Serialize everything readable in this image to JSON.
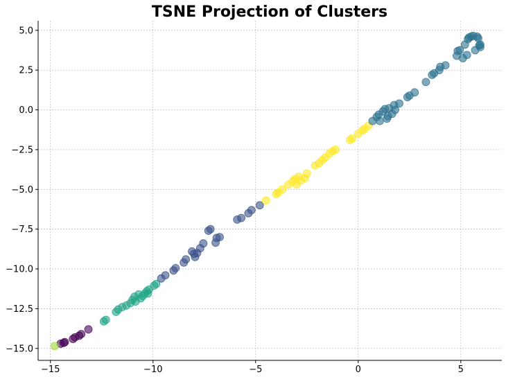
{
  "chart_data": {
    "type": "scatter",
    "title": "TSNE Projection of Clusters",
    "xlabel": "",
    "ylabel": "",
    "xlim": [
      -15.6,
      7.0
    ],
    "ylim": [
      -15.75,
      5.6
    ],
    "x_ticks": [
      -15,
      -10,
      -5,
      0,
      5
    ],
    "y_ticks": [
      5.0,
      2.5,
      0.0,
      -2.5,
      -5.0,
      -7.5,
      -10.0,
      -12.5,
      -15.0
    ],
    "x_tick_labels": [
      "−15",
      "−10",
      "−5",
      "0",
      "5"
    ],
    "y_tick_labels": [
      "5.0",
      "2.5",
      "0.0",
      "−2.5",
      "−5.0",
      "−7.5",
      "−10.0",
      "−12.5",
      "−15.0"
    ],
    "grid": true,
    "legend": "none",
    "series": [
      {
        "color": "#440154",
        "points": [
          [
            -14.5,
            -14.7
          ],
          [
            -14.3,
            -14.6
          ],
          [
            -14.35,
            -14.65
          ],
          [
            -13.9,
            -14.4
          ],
          [
            -13.8,
            -14.3
          ],
          [
            -13.6,
            -14.2
          ],
          [
            -13.5,
            -14.1
          ],
          [
            -13.15,
            -13.8
          ]
        ]
      },
      {
        "color": "#a0da39",
        "points": [
          [
            -14.8,
            -14.85
          ]
        ]
      },
      {
        "color": "#21a585",
        "points": [
          [
            -12.4,
            -13.3
          ],
          [
            -12.3,
            -13.2
          ],
          [
            -11.8,
            -12.7
          ],
          [
            -11.7,
            -12.55
          ],
          [
            -11.5,
            -12.4
          ],
          [
            -11.3,
            -12.3
          ],
          [
            -11.1,
            -12.15
          ],
          [
            -11.0,
            -11.95
          ],
          [
            -10.9,
            -11.75
          ],
          [
            -10.85,
            -12.05
          ],
          [
            -10.7,
            -11.6
          ],
          [
            -10.6,
            -11.85
          ],
          [
            -10.5,
            -11.7
          ],
          [
            -10.4,
            -11.55
          ],
          [
            -10.3,
            -11.4
          ],
          [
            -10.2,
            -11.3
          ],
          [
            -10.25,
            -11.55
          ],
          [
            -9.95,
            -11.05
          ],
          [
            -9.85,
            -10.95
          ]
        ]
      },
      {
        "color": "#3b528b",
        "points": [
          [
            -9.6,
            -10.6
          ],
          [
            -9.4,
            -10.4
          ],
          [
            -9.0,
            -10.1
          ],
          [
            -8.9,
            -9.95
          ],
          [
            -8.5,
            -9.6
          ],
          [
            -8.4,
            -9.4
          ],
          [
            -8.1,
            -8.9
          ],
          [
            -7.95,
            -9.25
          ],
          [
            -8.0,
            -9.05
          ],
          [
            -7.85,
            -9.0
          ],
          [
            -7.7,
            -8.7
          ],
          [
            -7.55,
            -8.4
          ],
          [
            -7.3,
            -7.6
          ],
          [
            -7.2,
            -7.5
          ],
          [
            -6.95,
            -8.35
          ],
          [
            -6.9,
            -8.05
          ],
          [
            -6.75,
            -8.0
          ],
          [
            -5.9,
            -6.9
          ],
          [
            -5.7,
            -6.8
          ],
          [
            -5.35,
            -6.5
          ],
          [
            -5.2,
            -6.3
          ],
          [
            -4.8,
            -6.0
          ]
        ]
      },
      {
        "color": "#fde725",
        "points": [
          [
            -4.5,
            -5.7
          ],
          [
            -4.0,
            -5.3
          ],
          [
            -3.9,
            -5.2
          ],
          [
            -3.7,
            -5.0
          ],
          [
            -3.4,
            -4.7
          ],
          [
            -3.2,
            -4.5
          ],
          [
            -3.1,
            -4.35
          ],
          [
            -3.0,
            -4.7
          ],
          [
            -2.9,
            -4.2
          ],
          [
            -2.8,
            -4.45
          ],
          [
            -2.6,
            -4.3
          ],
          [
            -2.5,
            -4.0
          ],
          [
            -2.1,
            -3.5
          ],
          [
            -1.9,
            -3.35
          ],
          [
            -1.75,
            -3.15
          ],
          [
            -1.6,
            -3.0
          ],
          [
            -1.4,
            -2.75
          ],
          [
            -1.25,
            -2.6
          ],
          [
            -1.1,
            -2.5
          ],
          [
            -0.4,
            -1.9
          ],
          [
            -0.3,
            -1.8
          ],
          [
            0.0,
            -1.5
          ],
          [
            0.2,
            -1.3
          ],
          [
            0.3,
            -1.2
          ],
          [
            0.5,
            -1.0
          ]
        ]
      },
      {
        "color": "#2c728e",
        "points": [
          [
            0.7,
            -0.7
          ],
          [
            0.9,
            -0.45
          ],
          [
            1.0,
            -0.3
          ],
          [
            1.05,
            -0.7
          ],
          [
            1.2,
            -0.1
          ],
          [
            1.3,
            0.05
          ],
          [
            1.4,
            -0.55
          ],
          [
            1.45,
            -0.4
          ],
          [
            1.5,
            0.1
          ],
          [
            1.65,
            -0.25
          ],
          [
            1.75,
            0.3
          ],
          [
            1.8,
            0.0
          ],
          [
            2.0,
            0.4
          ],
          [
            2.4,
            0.8
          ],
          [
            2.5,
            0.9
          ],
          [
            2.75,
            1.1
          ],
          [
            3.3,
            1.75
          ],
          [
            3.6,
            2.2
          ],
          [
            3.7,
            2.3
          ],
          [
            3.95,
            2.5
          ],
          [
            4.0,
            2.7
          ],
          [
            4.25,
            2.8
          ],
          [
            4.8,
            3.4
          ],
          [
            4.85,
            3.7
          ],
          [
            4.95,
            3.75
          ],
          [
            5.1,
            3.25
          ],
          [
            5.2,
            4.1
          ],
          [
            5.3,
            3.45
          ],
          [
            5.35,
            4.45
          ],
          [
            5.4,
            4.55
          ],
          [
            5.5,
            4.6
          ],
          [
            5.6,
            4.65
          ],
          [
            5.7,
            3.75
          ],
          [
            5.8,
            4.6
          ],
          [
            5.85,
            4.5
          ],
          [
            5.9,
            4.05
          ],
          [
            5.95,
            4.1
          ],
          [
            5.95,
            3.95
          ]
        ]
      }
    ]
  }
}
